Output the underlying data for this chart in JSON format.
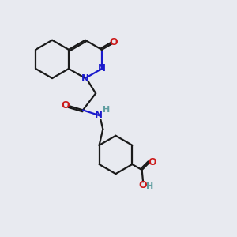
{
  "bg_color": "#e8eaf0",
  "bond_color": "#1a1a1a",
  "N_color": "#1a1acc",
  "O_color": "#cc1a1a",
  "H_color": "#5f9ea0",
  "line_width": 1.6,
  "fig_size": [
    3.0,
    3.0
  ],
  "dpi": 100,
  "xlim": [
    0,
    10
  ],
  "ylim": [
    0,
    10
  ]
}
